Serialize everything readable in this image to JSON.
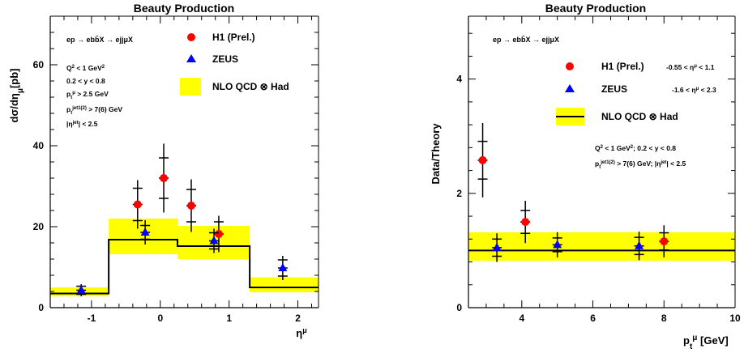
{
  "chart_data": [
    {
      "type": "scatter",
      "title": "Beauty Production",
      "xlabel": "η^μ",
      "ylabel": "dσ/dη_μ[pb]",
      "xlim": [
        -1.6,
        2.3
      ],
      "ylim": [
        0,
        72
      ],
      "x_ticks": [
        -1,
        0,
        1,
        2
      ],
      "y_ticks": [
        0,
        20,
        40,
        60
      ],
      "grid": false,
      "legend_position": "top-right",
      "process_label": "ep → ebb̄X → ejjμX",
      "cuts": [
        "Q² < 1 GeV²",
        "0.2 < y < 0.8",
        "p_t^μ > 2.5 GeV",
        "p_t^jet1(2) > 7(6) GeV",
        "|η^jet| < 2.5"
      ],
      "series": [
        {
          "name": "H1 (Prel.)",
          "marker": "circle",
          "color": "#ff0000",
          "points": [
            {
              "x": -0.33,
              "y": 25.5,
              "err_stat": 4.0,
              "err_tot": 6.0
            },
            {
              "x": 0.05,
              "y": 32.0,
              "err_stat": 5.0,
              "err_tot": 8.5
            },
            {
              "x": 0.45,
              "y": 25.2,
              "err_stat": 4.0,
              "err_tot": 6.5
            },
            {
              "x": 0.85,
              "y": 18.2,
              "err_stat": 3.0,
              "err_tot": 4.5
            }
          ]
        },
        {
          "name": "ZEUS",
          "marker": "triangle",
          "color": "#0000ff",
          "points": [
            {
              "x": -1.15,
              "y": 4.3,
              "err_stat": 1.0,
              "err_tot": 1.5
            },
            {
              "x": -0.22,
              "y": 18.6,
              "err_stat": 1.7,
              "err_tot": 3.0
            },
            {
              "x": 0.78,
              "y": 16.5,
              "err_stat": 2.0,
              "err_tot": 3.0
            },
            {
              "x": 1.78,
              "y": 9.8,
              "err_stat": 2.0,
              "err_tot": 3.0
            }
          ]
        },
        {
          "name": "NLO QCD ⊗ Had",
          "type": "band_step",
          "color": "#ffff00",
          "bins": [
            {
              "x_low": -1.6,
              "x_high": -0.75,
              "central": 3.5,
              "low": 2.8,
              "high": 5.0
            },
            {
              "x_low": -0.75,
              "x_high": 0.25,
              "central": 16.8,
              "low": 13.2,
              "high": 22.0
            },
            {
              "x_low": 0.25,
              "x_high": 1.3,
              "central": 15.2,
              "low": 12.0,
              "high": 20.2
            },
            {
              "x_low": 1.3,
              "x_high": 2.3,
              "central": 5.0,
              "low": 3.8,
              "high": 7.5
            }
          ]
        }
      ]
    },
    {
      "type": "scatter",
      "title": "Beauty Production",
      "xlabel": "p_t^μ [GeV]",
      "ylabel": "Data/Theory",
      "xlim": [
        2.5,
        10
      ],
      "ylim": [
        0,
        5.1
      ],
      "x_ticks": [
        4,
        6,
        8,
        10
      ],
      "y_ticks": [
        0,
        2,
        4
      ],
      "grid": false,
      "legend_position": "top-right",
      "process_label": "ep → ebb̄X → ejjμX",
      "legend_ranges": [
        "-0.55 < η^μ < 1.1",
        "-1.6 < η^μ < 2.3"
      ],
      "cuts_line1": "Q² < 1 GeV²;     0.2 < y < 0.8",
      "cuts_line2": "p_t^jet1(2) > 7(6) GeV;  |η^jet| < 2.5",
      "series": [
        {
          "name": "H1 (Prel.)",
          "marker": "circle",
          "color": "#ff0000",
          "points": [
            {
              "x": 2.9,
              "y": 2.58,
              "err_stat": 0.33,
              "err_tot": 0.65
            },
            {
              "x": 4.1,
              "y": 1.5,
              "err_stat": 0.2,
              "err_tot": 0.37
            },
            {
              "x": 8.0,
              "y": 1.16,
              "err_stat": 0.15,
              "err_tot": 0.28
            }
          ]
        },
        {
          "name": "ZEUS",
          "marker": "triangle",
          "color": "#0000ff",
          "points": [
            {
              "x": 3.3,
              "y": 1.05,
              "err_stat": 0.15,
              "err_tot": 0.25
            },
            {
              "x": 5.0,
              "y": 1.1,
              "err_stat": 0.12,
              "err_tot": 0.22
            },
            {
              "x": 7.3,
              "y": 1.08,
              "err_stat": 0.15,
              "err_tot": 0.25
            }
          ]
        },
        {
          "name": "NLO QCD ⊗ Had",
          "type": "band_flat",
          "color": "#ffff00",
          "central": 1.0,
          "low": 0.82,
          "high": 1.32
        }
      ]
    }
  ]
}
